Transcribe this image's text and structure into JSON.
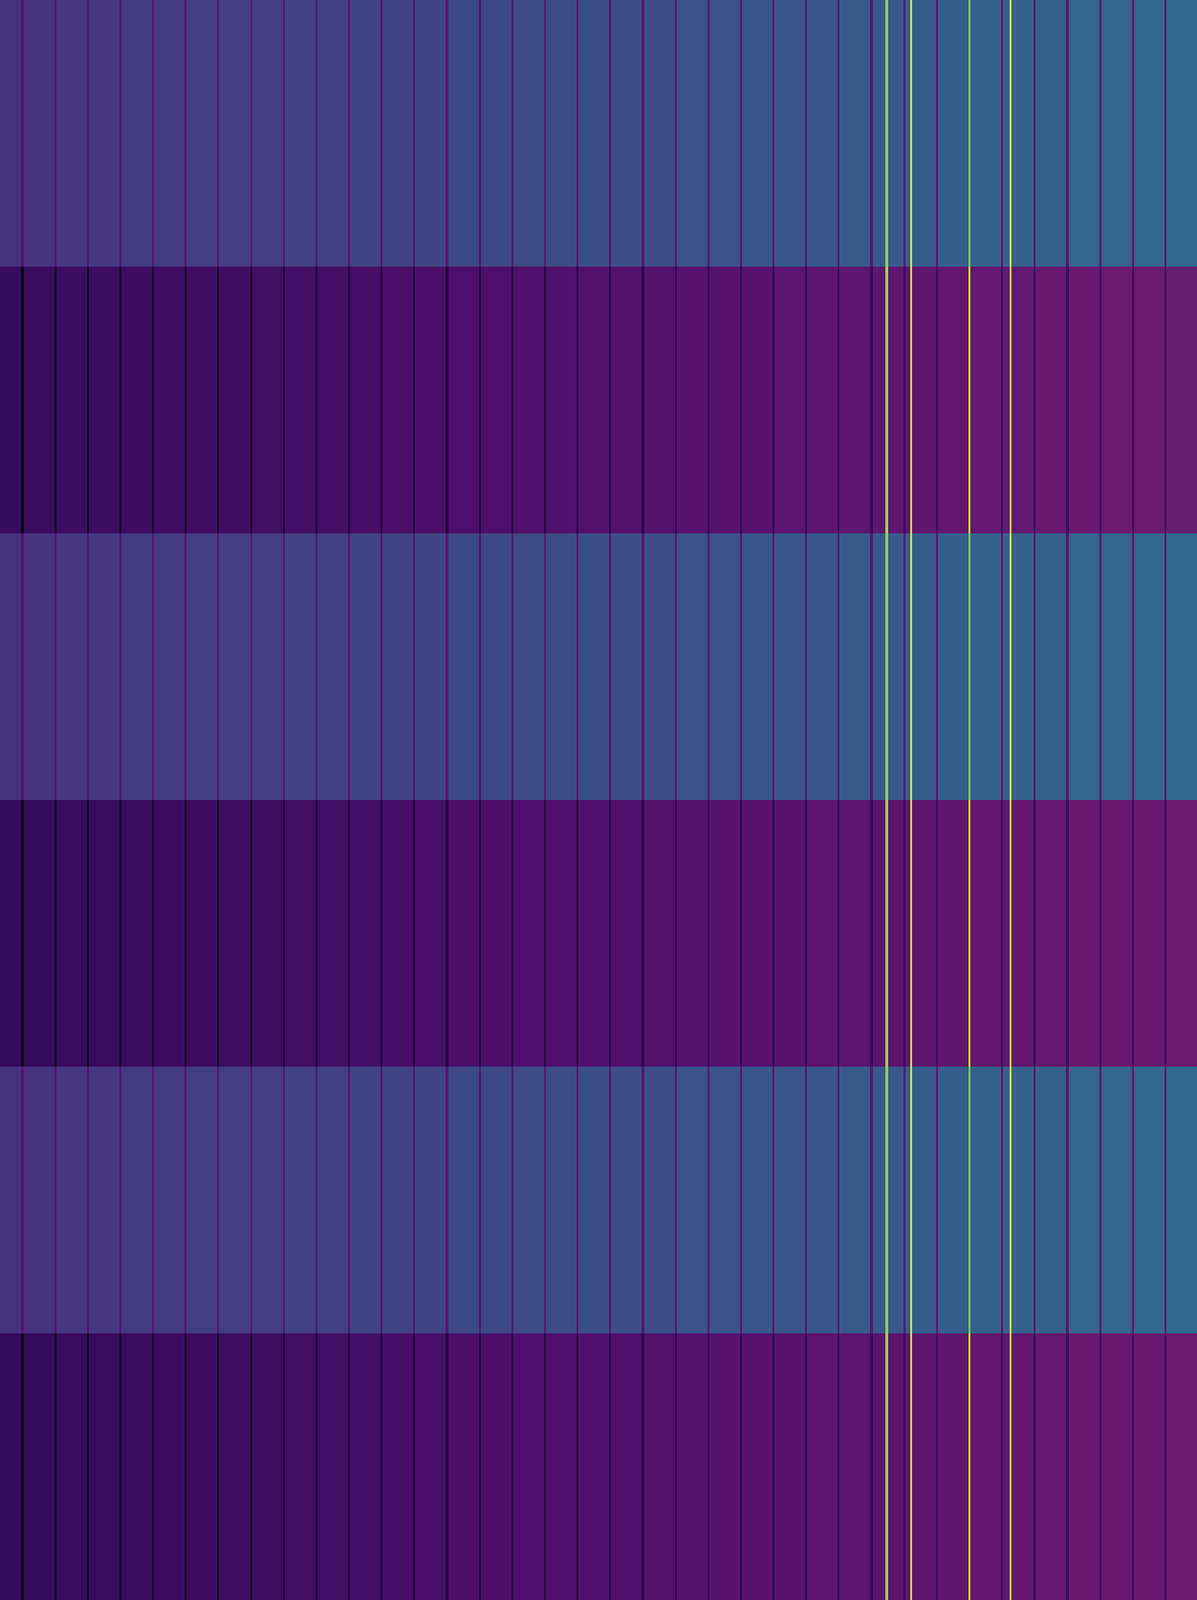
{
  "chart_data": {
    "type": "heatmap",
    "tick_labels": false,
    "x": [
      0,
      21,
      23,
      53,
      55,
      85,
      87,
      117,
      119,
      149,
      151,
      181,
      183,
      213,
      215,
      245,
      247,
      277,
      279,
      309,
      311,
      341,
      343,
      373,
      375,
      405,
      407,
      437,
      439,
      469,
      471,
      501,
      503,
      533,
      535,
      565,
      567,
      597,
      599,
      629,
      631,
      661,
      663,
      693,
      695,
      725,
      727,
      757,
      759,
      789,
      791,
      821,
      823,
      853,
      855,
      868,
      870,
      885,
      887,
      892,
      894,
      917,
      919,
      949,
      951,
      981,
      983,
      989,
      991,
      1013,
      1015,
      1045,
      1047,
      1077,
      1079,
      1109,
      1111,
      1141,
      1143,
      1173
    ],
    "y": [
      0,
      1,
      2,
      3,
      4,
      5,
      6
    ],
    "xlim": [
      0,
      1173
    ],
    "ylim": [
      0,
      6
    ],
    "zlim": [
      0,
      1
    ],
    "cells": [
      [
        0.23,
        0.05,
        0.24,
        0.06,
        0.25,
        0.06,
        0.25,
        0.07,
        0.26,
        0.08,
        0.27,
        0.09,
        0.27,
        0.09,
        0.28,
        0.1,
        0.29,
        0.11,
        0.3,
        0.11,
        0.31,
        0.12,
        0.31,
        0.13,
        0.32,
        0.13,
        0.33,
        0.14,
        0.34,
        0.15,
        0.34,
        0.16,
        0.35,
        0.16,
        0.36,
        0.17,
        0.37,
        0.18,
        0.37,
        0.18,
        0.38,
        0.19,
        0.39,
        0.2,
        0.4,
        0.2,
        0.4,
        0.21,
        0.41,
        0.22,
        0.42,
        0.23,
        0.43,
        0.23,
        0.43,
        0.93,
        0.43,
        0.24,
        0.44,
        0.96,
        0.44,
        0.25,
        0.45,
        0.97,
        0.46,
        0.26,
        0.46,
        0.95,
        0.46,
        0.27,
        0.47,
        0.27,
        0.48,
        0.28,
        0.49,
        0.29,
        0.49,
        0.3,
        0.5
      ],
      [
        0.55,
        0.4,
        0.55,
        0.4,
        0.56,
        0.4,
        0.56,
        0.4,
        0.57,
        0.4,
        0.57,
        0.4,
        0.58,
        0.41,
        0.58,
        0.41,
        0.58,
        0.41,
        0.59,
        0.41,
        0.59,
        0.41,
        0.6,
        0.41,
        0.6,
        0.41,
        0.6,
        0.42,
        0.61,
        0.42,
        0.61,
        0.42,
        0.62,
        0.42,
        0.62,
        0.42,
        0.63,
        0.42,
        0.63,
        0.42,
        0.63,
        0.43,
        0.64,
        0.43,
        0.64,
        0.43,
        0.65,
        0.43,
        0.65,
        0.43,
        0.65,
        0.43,
        0.66,
        0.43,
        0.66,
        0.92,
        0.66,
        0.44,
        0.67,
        0.97,
        0.67,
        0.44,
        0.67,
        0.9,
        0.68,
        0.44,
        0.68,
        0.98,
        0.68,
        0.44,
        0.68,
        0.44,
        0.69,
        0.44,
        0.69,
        0.44,
        0.7,
        0.44,
        0.7
      ],
      [
        0.23,
        0.05,
        0.24,
        0.06,
        0.25,
        0.06,
        0.25,
        0.07,
        0.26,
        0.08,
        0.27,
        0.09,
        0.27,
        0.09,
        0.28,
        0.1,
        0.29,
        0.11,
        0.3,
        0.11,
        0.31,
        0.12,
        0.31,
        0.13,
        0.32,
        0.13,
        0.33,
        0.14,
        0.34,
        0.15,
        0.34,
        0.16,
        0.35,
        0.16,
        0.36,
        0.17,
        0.37,
        0.18,
        0.37,
        0.18,
        0.38,
        0.19,
        0.39,
        0.2,
        0.4,
        0.2,
        0.4,
        0.21,
        0.41,
        0.22,
        0.42,
        0.23,
        0.43,
        0.23,
        0.43,
        0.93,
        0.43,
        0.24,
        0.44,
        0.96,
        0.44,
        0.25,
        0.45,
        0.97,
        0.46,
        0.26,
        0.46,
        0.95,
        0.46,
        0.27,
        0.47,
        0.27,
        0.48,
        0.28,
        0.49,
        0.29,
        0.49,
        0.3,
        0.5
      ],
      [
        0.55,
        0.4,
        0.55,
        0.4,
        0.56,
        0.4,
        0.56,
        0.4,
        0.57,
        0.4,
        0.57,
        0.4,
        0.58,
        0.41,
        0.58,
        0.41,
        0.58,
        0.41,
        0.59,
        0.41,
        0.59,
        0.41,
        0.6,
        0.41,
        0.6,
        0.41,
        0.6,
        0.42,
        0.61,
        0.42,
        0.61,
        0.42,
        0.62,
        0.42,
        0.62,
        0.42,
        0.63,
        0.42,
        0.63,
        0.42,
        0.63,
        0.43,
        0.64,
        0.43,
        0.64,
        0.43,
        0.65,
        0.43,
        0.65,
        0.43,
        0.65,
        0.43,
        0.66,
        0.43,
        0.66,
        0.92,
        0.66,
        0.44,
        0.67,
        0.97,
        0.67,
        0.44,
        0.67,
        0.9,
        0.68,
        0.44,
        0.68,
        0.98,
        0.68,
        0.44,
        0.68,
        0.44,
        0.69,
        0.44,
        0.69,
        0.44,
        0.7,
        0.44,
        0.7
      ],
      [
        0.24,
        0.05,
        0.25,
        0.06,
        0.26,
        0.06,
        0.26,
        0.07,
        0.27,
        0.08,
        0.28,
        0.09,
        0.28,
        0.09,
        0.29,
        0.1,
        0.3,
        0.11,
        0.31,
        0.11,
        0.32,
        0.12,
        0.32,
        0.13,
        0.33,
        0.13,
        0.34,
        0.14,
        0.35,
        0.15,
        0.35,
        0.16,
        0.36,
        0.16,
        0.37,
        0.17,
        0.38,
        0.18,
        0.38,
        0.18,
        0.39,
        0.19,
        0.4,
        0.2,
        0.41,
        0.2,
        0.41,
        0.21,
        0.42,
        0.22,
        0.43,
        0.23,
        0.44,
        0.23,
        0.44,
        0.93,
        0.44,
        0.24,
        0.45,
        0.96,
        0.45,
        0.25,
        0.46,
        0.97,
        0.47,
        0.26,
        0.47,
        0.95,
        0.47,
        0.27,
        0.48,
        0.27,
        0.49,
        0.28,
        0.5,
        0.29,
        0.5,
        0.3,
        0.51
      ],
      [
        0.55,
        0.4,
        0.55,
        0.4,
        0.56,
        0.4,
        0.56,
        0.4,
        0.57,
        0.4,
        0.57,
        0.4,
        0.58,
        0.41,
        0.58,
        0.41,
        0.58,
        0.41,
        0.59,
        0.41,
        0.59,
        0.41,
        0.6,
        0.41,
        0.6,
        0.41,
        0.6,
        0.42,
        0.61,
        0.42,
        0.61,
        0.42,
        0.62,
        0.42,
        0.62,
        0.42,
        0.63,
        0.42,
        0.63,
        0.42,
        0.63,
        0.43,
        0.64,
        0.43,
        0.64,
        0.43,
        0.65,
        0.43,
        0.65,
        0.43,
        0.65,
        0.43,
        0.66,
        0.43,
        0.66,
        0.92,
        0.66,
        0.44,
        0.67,
        0.97,
        0.67,
        0.44,
        0.67,
        0.9,
        0.68,
        0.44,
        0.68,
        0.98,
        0.68,
        0.44,
        0.68,
        0.44,
        0.69,
        0.44,
        0.69,
        0.44,
        0.7,
        0.44,
        0.7
      ]
    ]
  }
}
